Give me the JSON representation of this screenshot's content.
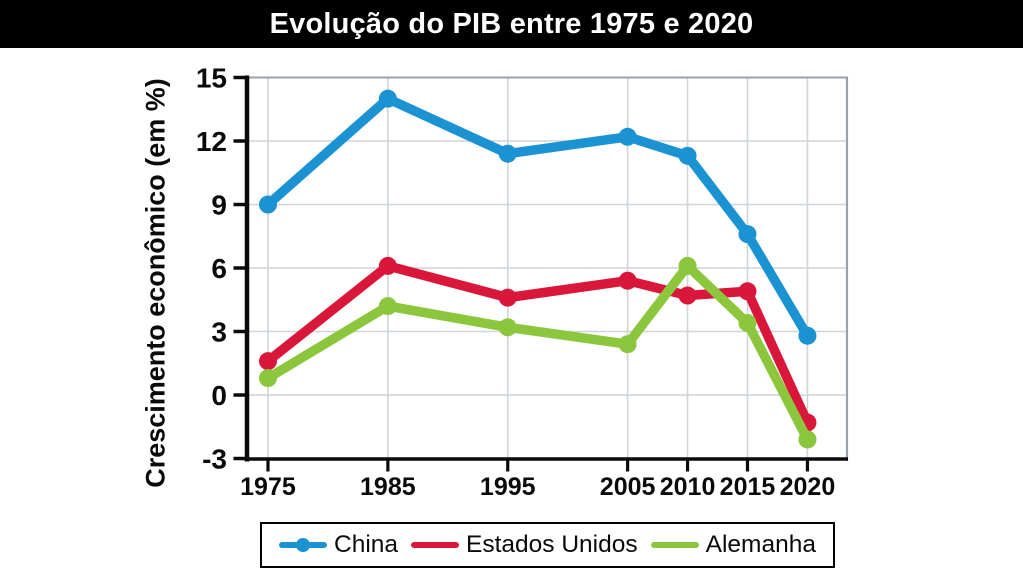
{
  "title_bar": {
    "title": "Evolução do PIB entre 1975 e 2020"
  },
  "chart_data": {
    "type": "line",
    "title": "Evolução do PIB entre 1975 e 2020",
    "xlabel": "",
    "ylabel": "Crescimento econômico (em %)",
    "x": [
      1975,
      1985,
      1995,
      2005,
      2010,
      2015,
      2020
    ],
    "xtick_labels": [
      "1975",
      "1985",
      "1995",
      "2005",
      "2010",
      "2015",
      "2020"
    ],
    "yticks": [
      15,
      12,
      9,
      6,
      3,
      0,
      -3
    ],
    "ytick_labels": [
      "15",
      "12",
      "9",
      "6",
      "3",
      "0",
      "-3"
    ],
    "xlim": [
      1973.25,
      2023.3
    ],
    "ylim": [
      -3.07,
      15
    ],
    "grid": true,
    "legend": {
      "position": "bottom-center",
      "border": true,
      "entries": [
        "China",
        "Estados Unidos",
        "Alemanha"
      ]
    },
    "series": [
      {
        "name": "China",
        "color": "#1b92d2",
        "marker": "circle",
        "legend_dot": true,
        "values": [
          9.0,
          14.0,
          11.4,
          12.2,
          11.3,
          7.6,
          2.8
        ]
      },
      {
        "name": "Estados Unidos",
        "color": "#d9173a",
        "marker": "circle",
        "legend_dot": false,
        "values": [
          1.6,
          6.1,
          4.6,
          5.4,
          4.7,
          4.9,
          -1.3
        ]
      },
      {
        "name": "Alemanha",
        "color": "#8cc63d",
        "marker": "circle",
        "legend_dot": false,
        "values": [
          0.8,
          4.2,
          3.2,
          2.4,
          6.1,
          3.4,
          -2.1
        ]
      }
    ],
    "colors": {
      "axis": "#0a0a0a",
      "grid": "#cfd4d9",
      "frame": "#9aa1a8",
      "title_bar_bg": "#000000",
      "title_text": "#ffffff"
    }
  }
}
